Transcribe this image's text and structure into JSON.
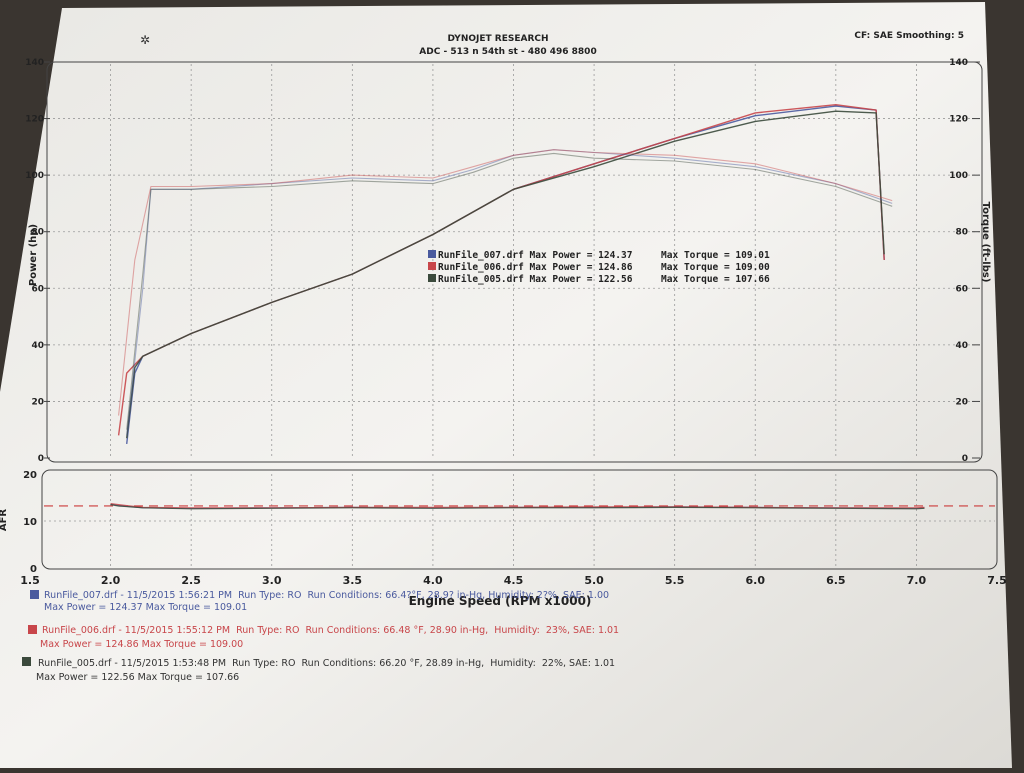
{
  "header": {
    "title": "DYNOJET RESEARCH",
    "subtitle": "ADC - 513 n 54th st - 480 496 8800",
    "conditions_label": "CF: SAE  Smoothing: 5"
  },
  "colors": {
    "run007": "#4a5a9e",
    "run006": "#c8464a",
    "run005": "#3b4a3c",
    "afr_target": "#cc3b3b",
    "grid": "#9a9a9a",
    "paper": "#f3f2ef"
  },
  "legend": [
    {
      "text": "RunFile_007.drf Max Power = 124.37     Max Torque = 109.01"
    },
    {
      "text": "RunFile_006.drf Max Power = 124.86     Max Torque = 109.00"
    },
    {
      "text": "RunFile_005.drf Max Power = 122.56     Max Torque = 107.66"
    }
  ],
  "runs": [
    {
      "line1": "RunFile_007.drf - 11/5/2015 1:56:21 PM  Run Type: RO  Run Conditions: 66.4?°F, 28.9? in-Hg, Humidity: 2?%, SAE: 1.00",
      "line2": "Max Power = 124.37  Max Torque = 109.01"
    },
    {
      "line1": "RunFile_006.drf - 11/5/2015 1:55:12 PM  Run Type: RO  Run Conditions: 66.48 °F, 28.90 in-Hg,  Humidity:  23%, SAE: 1.01",
      "line2": "Max Power = 124.86  Max Torque = 109.00"
    },
    {
      "line1": "RunFile_005.drf - 11/5/2015 1:53:48 PM  Run Type: RO  Run Conditions: 66.20 °F, 28.89 in-Hg,  Humidity:  22%, SAE: 1.01",
      "line2": "Max Power = 122.56  Max Torque = 107.66"
    }
  ],
  "chart_data": [
    {
      "type": "line",
      "xlabel": "Engine Speed (RPM x1000)",
      "ylabel": "Power (hp)",
      "y2label": "Torque (ft-lbs)",
      "xlim": [
        1.5,
        7.5
      ],
      "ylim": [
        0,
        140
      ],
      "y2lim": [
        0,
        140
      ],
      "x_ticks": [
        "1.5",
        "2.0",
        "2.5",
        "3.0",
        "3.5",
        "4.0",
        "4.5",
        "5.0",
        "5.5",
        "6.0",
        "6.5",
        "7.0",
        "7.5"
      ],
      "y_ticks": [
        "0",
        "20",
        "40",
        "60",
        "80",
        "100",
        "120",
        "140"
      ],
      "y2_ticks": [
        "0",
        "20",
        "40",
        "60",
        "80",
        "100",
        "120",
        "140"
      ],
      "grid": true,
      "series": [
        {
          "name": "RunFile_007.drf",
          "quantity": "power",
          "x": [
            2.1,
            2.15,
            2.2,
            2.5,
            3.0,
            3.5,
            4.0,
            4.5,
            5.0,
            5.5,
            6.0,
            6.5,
            6.75,
            6.8
          ],
          "y": [
            5,
            30,
            36,
            44,
            55,
            65,
            79,
            95,
            104,
            113,
            121,
            124.4,
            123,
            70
          ]
        },
        {
          "name": "RunFile_006.drf",
          "quantity": "power",
          "x": [
            2.05,
            2.1,
            2.2,
            2.5,
            3.0,
            3.5,
            4.0,
            4.5,
            5.0,
            5.5,
            6.0,
            6.5,
            6.75,
            6.8
          ],
          "y": [
            8,
            30,
            36,
            44,
            55,
            65,
            79,
            95,
            104,
            113,
            122,
            124.9,
            123,
            70
          ]
        },
        {
          "name": "RunFile_005.drf",
          "quantity": "power",
          "x": [
            2.1,
            2.15,
            2.2,
            2.5,
            3.0,
            3.5,
            4.0,
            4.5,
            5.0,
            5.5,
            6.0,
            6.5,
            6.75,
            6.8
          ],
          "y": [
            7,
            32,
            36,
            44,
            55,
            65,
            79,
            95,
            103,
            112,
            119,
            122.6,
            122,
            72
          ]
        },
        {
          "name": "RunFile_007.drf",
          "quantity": "torque",
          "x": [
            2.1,
            2.2,
            2.25,
            2.5,
            3.0,
            3.5,
            4.0,
            4.25,
            4.5,
            4.75,
            5.0,
            5.5,
            6.0,
            6.5,
            6.85
          ],
          "y": [
            8,
            60,
            95,
            95,
            97,
            99,
            98,
            102,
            107,
            109,
            108,
            106,
            103,
            97,
            90
          ]
        },
        {
          "name": "RunFile_006.drf",
          "quantity": "torque",
          "x": [
            2.05,
            2.15,
            2.25,
            2.5,
            3.0,
            3.5,
            4.0,
            4.25,
            4.5,
            4.75,
            5.0,
            5.5,
            6.0,
            6.5,
            6.85
          ],
          "y": [
            15,
            70,
            96,
            96,
            97,
            100,
            99,
            103,
            107,
            109,
            108,
            107,
            104,
            97,
            91
          ]
        },
        {
          "name": "RunFile_005.drf",
          "quantity": "torque",
          "x": [
            2.1,
            2.2,
            2.25,
            2.5,
            3.0,
            3.5,
            4.0,
            4.25,
            4.5,
            4.75,
            5.0,
            5.5,
            6.0,
            6.5,
            6.85
          ],
          "y": [
            10,
            65,
            95,
            95,
            96,
            98,
            97,
            101,
            106,
            107.7,
            106,
            105,
            102,
            96,
            89
          ]
        }
      ]
    },
    {
      "type": "line",
      "ylabel": "AFR",
      "xlim": [
        1.5,
        7.5
      ],
      "ylim": [
        0,
        20
      ],
      "y_ticks": [
        "0",
        "10",
        "20"
      ],
      "grid": true,
      "target": 13.2,
      "series": [
        {
          "name": "RunFile_007.drf",
          "x": [
            2.0,
            2.05,
            2.2,
            2.5,
            3.0,
            3.5,
            4.0,
            4.5,
            5.0,
            5.5,
            6.0,
            6.5,
            7.0,
            7.05
          ],
          "y": [
            13.6,
            13.3,
            12.8,
            12.7,
            12.8,
            12.9,
            12.8,
            12.9,
            12.9,
            13.0,
            12.9,
            12.8,
            12.7,
            12.8
          ]
        },
        {
          "name": "RunFile_006.drf",
          "x": [
            2.0,
            2.05,
            2.2,
            2.5,
            3.0,
            3.5,
            4.0,
            4.5,
            5.0,
            5.5,
            6.0,
            6.5,
            7.0,
            7.05
          ],
          "y": [
            13.7,
            13.5,
            12.9,
            12.8,
            12.8,
            12.9,
            12.9,
            12.9,
            13.0,
            13.0,
            12.9,
            12.8,
            12.8,
            12.9
          ]
        },
        {
          "name": "RunFile_005.drf",
          "x": [
            2.0,
            2.05,
            2.2,
            2.5,
            3.0,
            3.5,
            4.0,
            4.5,
            5.0,
            5.5,
            6.0,
            6.5,
            7.0,
            7.05
          ],
          "y": [
            13.5,
            13.2,
            12.8,
            12.6,
            12.7,
            12.8,
            12.7,
            12.8,
            12.8,
            12.9,
            12.8,
            12.7,
            12.6,
            12.7
          ]
        }
      ]
    }
  ]
}
